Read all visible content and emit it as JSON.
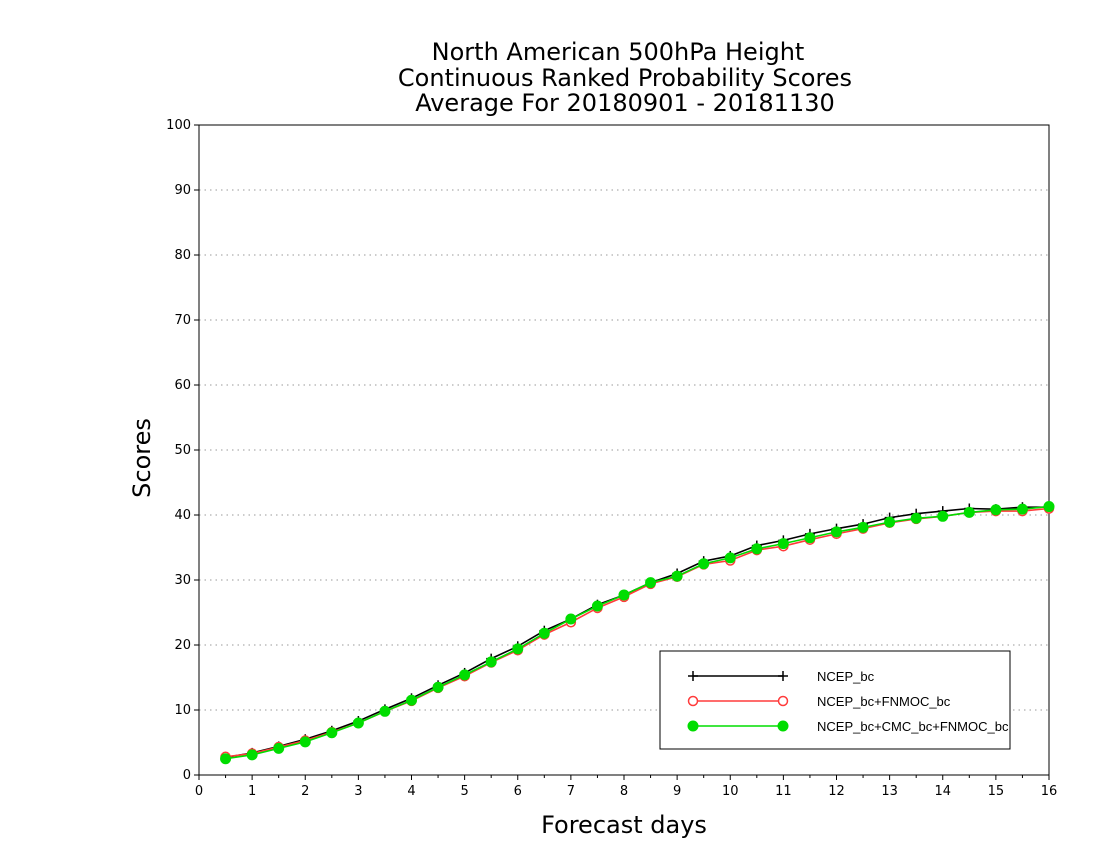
{
  "chart_data": {
    "type": "line",
    "title": [
      "North American 500hPa Height",
      "Continuous Ranked Probability Scores",
      "Average For 20180901 - 20181130"
    ],
    "xlabel": "Forecast days",
    "ylabel": "Scores",
    "xlim": [
      0,
      16
    ],
    "ylim": [
      0,
      100
    ],
    "xticks": [
      0,
      1,
      2,
      3,
      4,
      5,
      6,
      7,
      8,
      9,
      10,
      11,
      12,
      13,
      14,
      15,
      16
    ],
    "yticks": [
      0,
      10,
      20,
      30,
      40,
      50,
      60,
      70,
      80,
      90,
      100
    ],
    "grid": "horizontal dotted",
    "legend_position": "lower-right",
    "x": [
      0.5,
      1.0,
      1.5,
      2.0,
      2.5,
      3.0,
      3.5,
      4.0,
      4.5,
      5.0,
      5.5,
      6.0,
      6.5,
      7.0,
      7.5,
      8.0,
      8.5,
      9.0,
      9.5,
      10.0,
      10.5,
      11.0,
      11.5,
      12.0,
      12.5,
      13.0,
      13.5,
      14.0,
      14.5,
      15.0,
      15.5,
      16.0
    ],
    "series": [
      {
        "name": "NCEP_bc",
        "color": "#000000",
        "marker": "plus",
        "values": [
          2.7,
          3.4,
          4.4,
          5.5,
          6.8,
          8.3,
          10.1,
          11.8,
          13.8,
          15.7,
          17.9,
          19.8,
          22.2,
          24.0,
          26.2,
          27.7,
          29.6,
          31.0,
          32.9,
          33.7,
          35.3,
          36.1,
          37.1,
          37.9,
          38.6,
          39.6,
          40.2,
          40.6,
          41.0,
          40.9,
          41.2,
          41.2
        ]
      },
      {
        "name": "NCEP_bc+FNMOC_bc",
        "color": "#ff3b3b",
        "marker": "open-circle",
        "values": [
          2.8,
          3.3,
          4.3,
          5.3,
          6.6,
          8.0,
          9.8,
          11.4,
          13.4,
          15.2,
          17.3,
          19.2,
          21.6,
          23.5,
          25.7,
          27.4,
          29.4,
          30.5,
          32.4,
          33.0,
          34.6,
          35.2,
          36.2,
          37.1,
          37.9,
          38.8,
          39.4,
          39.8,
          40.4,
          40.6,
          40.6,
          41.0
        ]
      },
      {
        "name": "NCEP_bc+CMC_bc+FNMOC_bc",
        "color": "#00dd00",
        "marker": "filled-circle",
        "values": [
          2.5,
          3.1,
          4.1,
          5.1,
          6.5,
          8.0,
          9.8,
          11.5,
          13.5,
          15.4,
          17.4,
          19.4,
          21.8,
          24.0,
          26.0,
          27.7,
          29.6,
          30.6,
          32.5,
          33.4,
          34.8,
          35.6,
          36.5,
          37.4,
          38.1,
          38.9,
          39.5,
          39.8,
          40.4,
          40.8,
          40.9,
          41.3
        ]
      }
    ]
  }
}
